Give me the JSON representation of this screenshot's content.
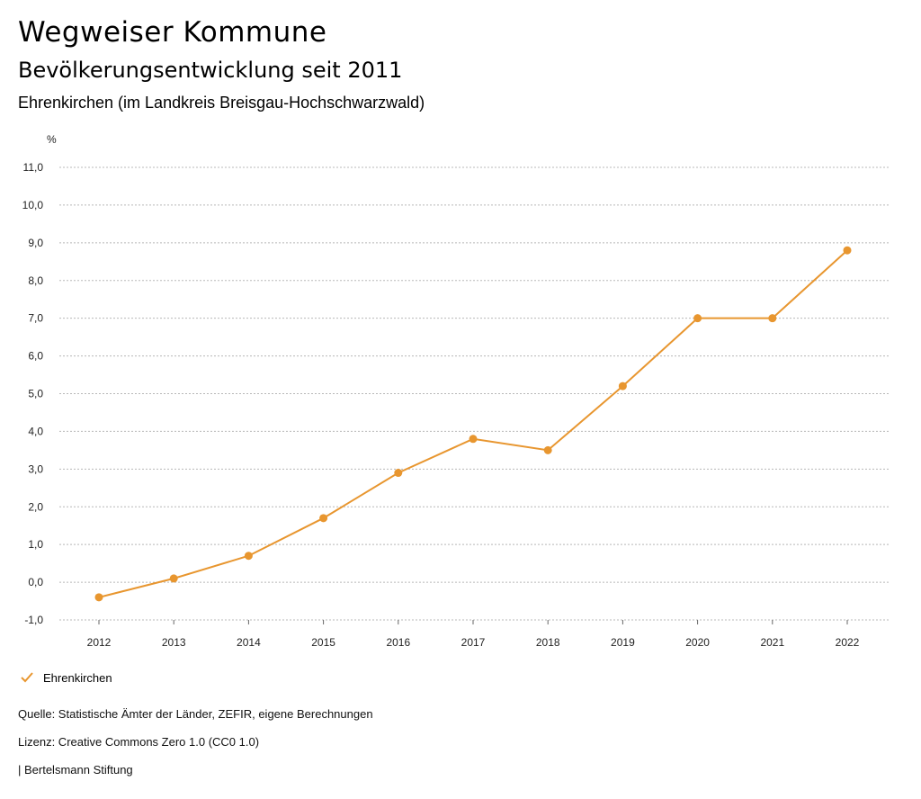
{
  "header": {
    "title": "Wegweiser Kommune",
    "subtitle": "Bevölkerungsentwicklung seit 2011",
    "region": "Ehrenkirchen (im Landkreis Breisgau-Hochschwarzwald)"
  },
  "chart_data": {
    "type": "line",
    "ylabel": "%",
    "x": [
      "2012",
      "2013",
      "2014",
      "2015",
      "2016",
      "2017",
      "2018",
      "2019",
      "2020",
      "2021",
      "2022"
    ],
    "series": [
      {
        "name": "Ehrenkirchen",
        "values": [
          -0.4,
          0.1,
          0.7,
          1.7,
          2.9,
          3.8,
          3.5,
          5.2,
          7.0,
          7.0,
          8.8
        ],
        "color": "#e8962f"
      }
    ],
    "yticks": [
      "11,0",
      "10,0",
      "9,0",
      "8,0",
      "7,0",
      "6,0",
      "5,0",
      "4,0",
      "3,0",
      "2,0",
      "1,0",
      "0,0",
      "-1,0"
    ],
    "ylim": [
      -1,
      11
    ],
    "grid": true,
    "legend_position": "bottom-left"
  },
  "legend": {
    "label": "Ehrenkirchen",
    "icon": "check-icon"
  },
  "footer": {
    "source": "Quelle: Statistische Ämter der Länder, ZEFIR, eigene Berechnungen",
    "license": "Lizenz: Creative Commons Zero 1.0 (CC0 1.0)",
    "publisher": "| Bertelsmann Stiftung"
  }
}
